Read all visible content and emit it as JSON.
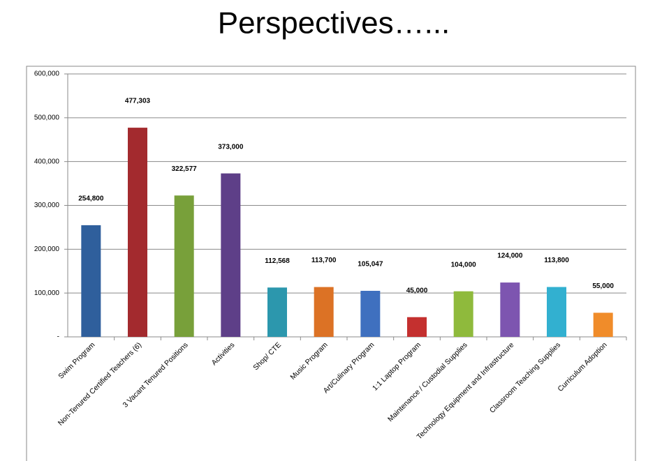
{
  "chart_data": {
    "type": "bar",
    "title": "Perspectives…...",
    "categories": [
      "Swim Program",
      "Non-Tenured Certified Teachers (6)",
      "3 Vacant Tenured Positions",
      "Activities",
      "Shop/ CTE",
      "Music Program",
      "Art/Culinary Program",
      "1:1 Laptop Program",
      "Maintenance / Custodial Supplies",
      "Technology Equipment and Infrastructure",
      "Classroom Teaching Supplies",
      "Curriculum Adoption"
    ],
    "values": [
      254800,
      477303,
      322577,
      373000,
      112568,
      113700,
      105047,
      45000,
      104000,
      124000,
      113800,
      55000
    ],
    "value_labels": [
      "254,800",
      "477,303",
      "322,577",
      "373,000",
      "112,568",
      "113,700",
      "105,047",
      "45,000",
      "104,000",
      "124,000",
      "113,800",
      "55,000"
    ],
    "colors": [
      "#2f5f9c",
      "#a32a2e",
      "#78a03a",
      "#5e3f88",
      "#2c97ad",
      "#dc7225",
      "#3f70bf",
      "#c4302f",
      "#8fba3c",
      "#7d55b0",
      "#32b0d0",
      "#f08c2a"
    ],
    "ylim": [
      0,
      600000
    ],
    "yticks": [
      {
        "value": 0,
        "label": "-"
      },
      {
        "value": 100000,
        "label": "100,000"
      },
      {
        "value": 200000,
        "label": "200,000"
      },
      {
        "value": 300000,
        "label": "300,000"
      },
      {
        "value": 400000,
        "label": "400,000"
      },
      {
        "value": 500000,
        "label": "500,000"
      },
      {
        "value": 600000,
        "label": "600,000"
      }
    ],
    "grid": true
  }
}
